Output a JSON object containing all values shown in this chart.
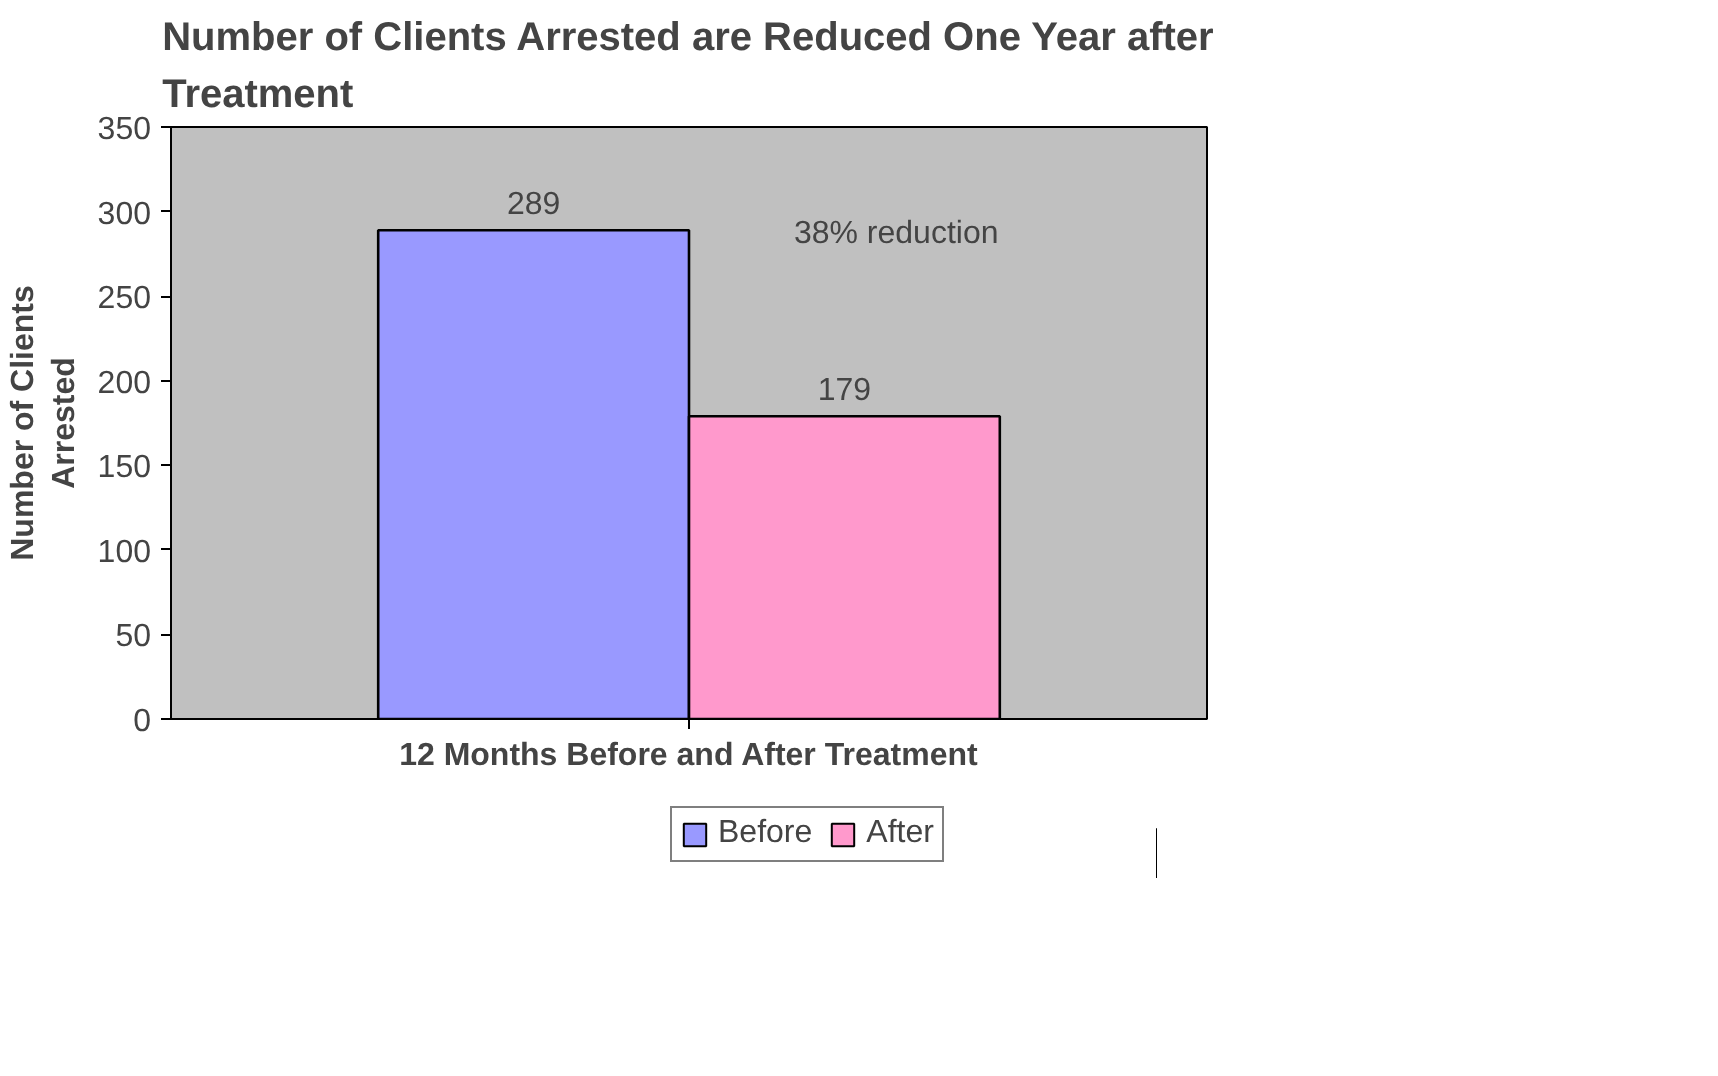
{
  "chart_data": {
    "type": "bar",
    "title": "Number of Clients Arrested are Reduced One Year after Treatment",
    "xlabel": "12 Months Before and After Treatment",
    "ylabel": "Number of Clients Arrested",
    "categories": [
      null
    ],
    "series": [
      {
        "name": "Before",
        "color": "#9999ff",
        "values": [
          289
        ]
      },
      {
        "name": "After",
        "color": "#ff99cc",
        "values": [
          179
        ]
      }
    ],
    "ylim": [
      0,
      350
    ],
    "yticks": [
      0,
      50,
      100,
      150,
      200,
      250,
      300,
      350
    ],
    "grid": false,
    "legend": "bottom",
    "data_labels": true,
    "annotations": [
      "38% reduction"
    ]
  }
}
